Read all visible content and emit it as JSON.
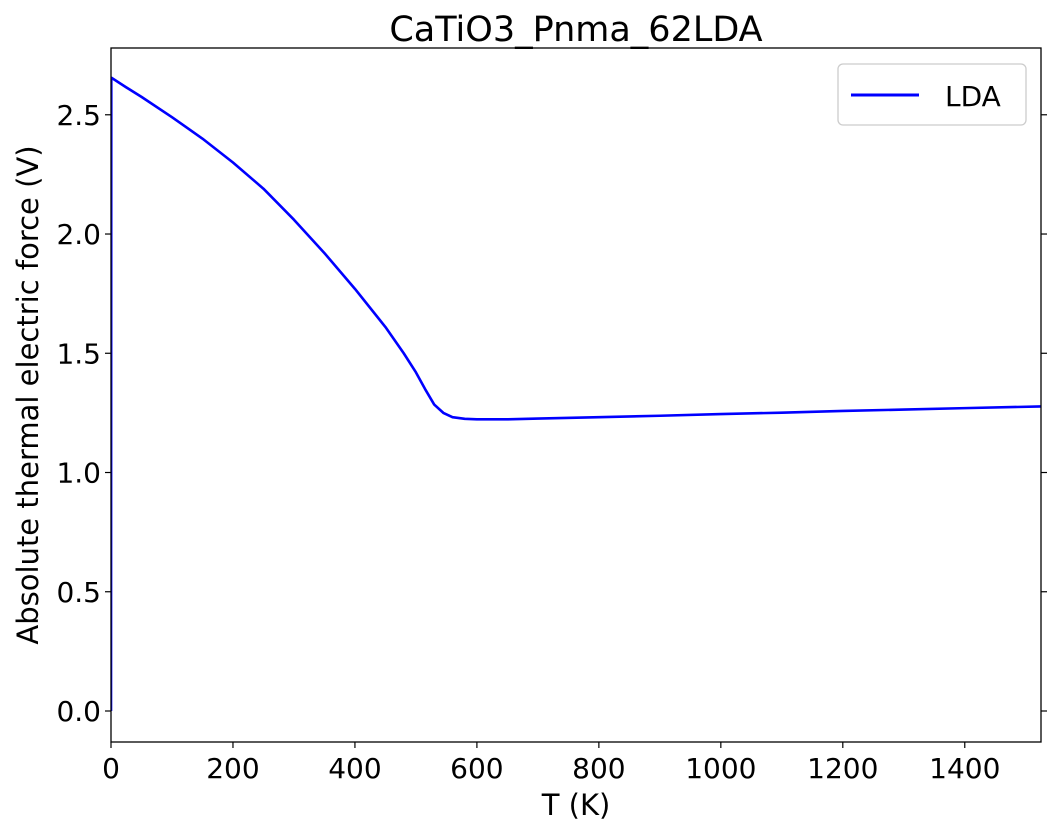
{
  "chart_data": {
    "type": "line",
    "title": "CaTiO3_Pnma_62LDA",
    "xlabel": "T (K)",
    "ylabel": "Absolute thermal electric force (V)",
    "xlim": [
      0,
      1525
    ],
    "ylim": [
      -0.13,
      2.78
    ],
    "xticks": [
      0,
      200,
      400,
      600,
      800,
      1000,
      1200,
      1400
    ],
    "yticks": [
      0.0,
      0.5,
      1.0,
      1.5,
      2.0,
      2.5
    ],
    "xtick_labels": [
      "0",
      "200",
      "400",
      "600",
      "800",
      "1000",
      "1200",
      "1400"
    ],
    "ytick_labels": [
      "0.0",
      "0.5",
      "1.0",
      "1.5",
      "2.0",
      "2.5"
    ],
    "grid": false,
    "legend": "top-right",
    "series": [
      {
        "name": "LDA",
        "color": "#0000ff",
        "x": [
          0,
          0.5,
          1,
          25,
          50,
          100,
          150,
          200,
          250,
          300,
          350,
          400,
          450,
          480,
          500,
          515,
          530,
          545,
          560,
          580,
          600,
          650,
          700,
          800,
          900,
          1000,
          1100,
          1200,
          1300,
          1400,
          1525
        ],
        "y": [
          0.0,
          2.655,
          2.655,
          2.615,
          2.575,
          2.49,
          2.4,
          2.3,
          2.19,
          2.06,
          1.92,
          1.77,
          1.61,
          1.5,
          1.42,
          1.35,
          1.285,
          1.25,
          1.232,
          1.225,
          1.223,
          1.223,
          1.226,
          1.232,
          1.238,
          1.245,
          1.251,
          1.258,
          1.264,
          1.27,
          1.277
        ]
      }
    ]
  }
}
